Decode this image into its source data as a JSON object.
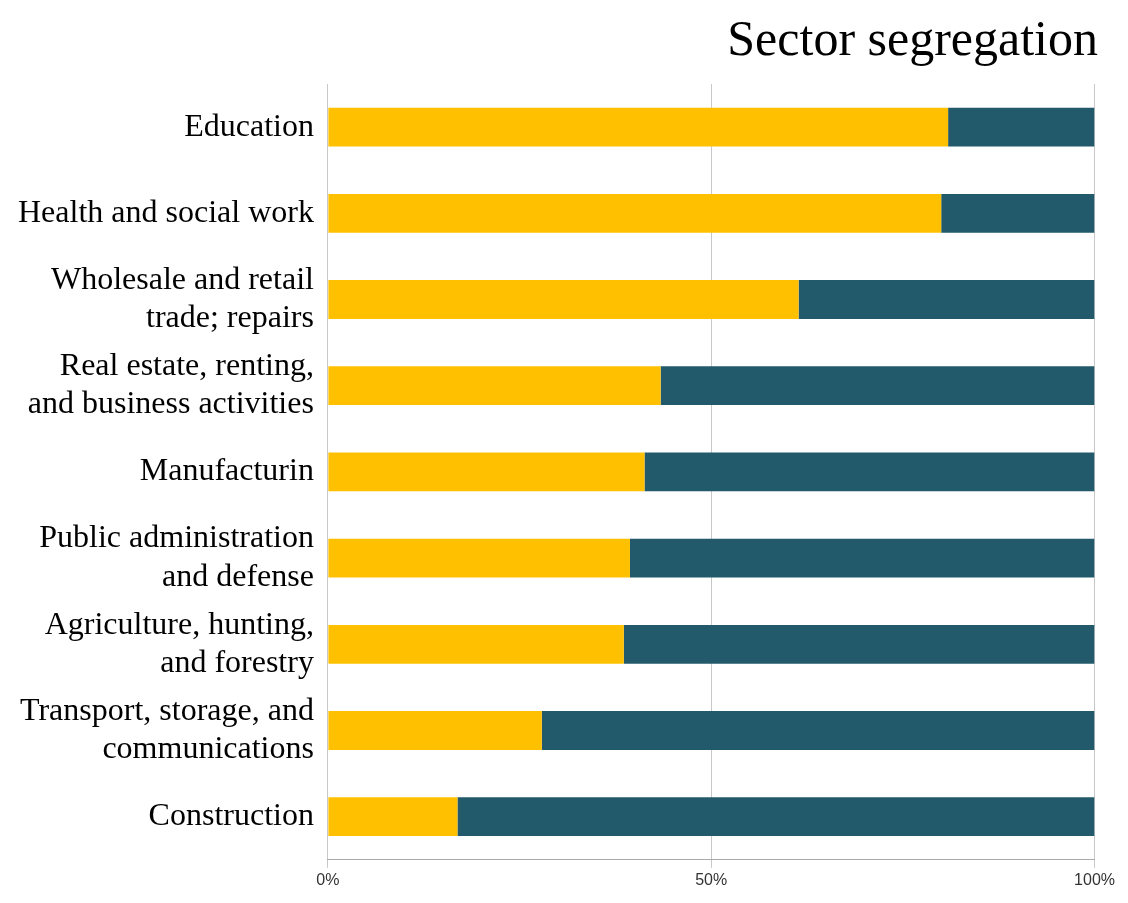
{
  "chart_data": {
    "type": "bar",
    "orientation": "horizontal",
    "stacked": true,
    "title": "Sector segregation",
    "categories": [
      "Education",
      "Health and social work",
      "Wholesale and retail trade; repairs",
      "Real estate, renting, and business activities",
      "Manufacturin",
      "Public administration and defense",
      "Agriculture, hunting, and forestry",
      "Transport, storage, and communications",
      "Construction"
    ],
    "series": [
      {
        "color": "#ffc000",
        "values": [
          80.9,
          80.0,
          61.4,
          43.4,
          41.3,
          39.4,
          38.6,
          27.9,
          16.9
        ]
      },
      {
        "color": "#235a6b",
        "values": [
          19.1,
          20.0,
          38.6,
          56.6,
          58.7,
          60.6,
          61.4,
          72.1,
          83.1
        ]
      }
    ],
    "xlim": [
      0,
      100
    ],
    "xticks": [
      {
        "value": 0,
        "label": "0%"
      },
      {
        "value": 50,
        "label": "50%"
      },
      {
        "value": 100,
        "label": "100%"
      }
    ],
    "grid": "x",
    "legend": false
  }
}
